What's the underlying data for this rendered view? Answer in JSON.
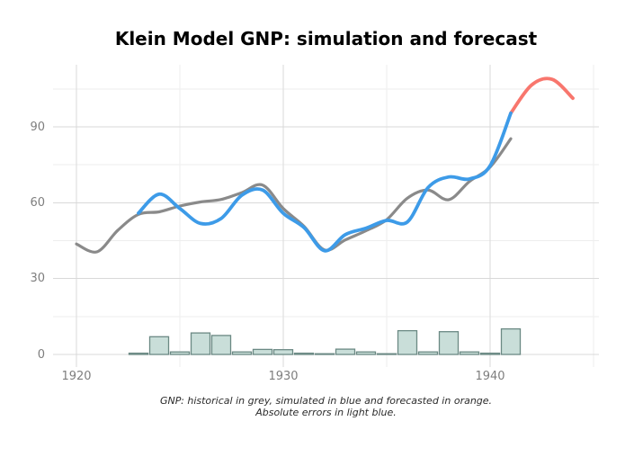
{
  "chart_data": {
    "type": "line+bar",
    "title": "Klein Model GNP: simulation and forecast",
    "caption_line1": "GNP: historical in grey, simulated in blue and forecasted in orange.",
    "caption_line2": "Absolute errors in light blue.",
    "xlabel": "",
    "ylabel": "",
    "grid": true,
    "legend": false,
    "x_axis": {
      "ticks_major": [
        1920,
        1930,
        1940
      ],
      "ticks_minor": [
        1925,
        1935,
        1945
      ],
      "range": [
        1918.9,
        1946.3
      ]
    },
    "y_axis": {
      "ticks_major": [
        0,
        30,
        60,
        90
      ],
      "ticks_minor": [
        15,
        45,
        75,
        105
      ],
      "range": [
        -5.5,
        114.5
      ]
    },
    "colors": {
      "historical": "#8a8a8a",
      "simulated": "#3d9be8",
      "forecast": "#f8766d",
      "error_fill": "#c9ded9",
      "error_border": "#6b8984",
      "grid_major": "#d9d9d9",
      "grid_minor": "#eeeeee",
      "axis_label": "#7e7e7e"
    },
    "series": [
      {
        "name": "historical GNP",
        "style": "line",
        "color_key": "historical",
        "years": [
          1920,
          1921,
          1922,
          1923,
          1924,
          1925,
          1926,
          1927,
          1928,
          1929,
          1930,
          1931,
          1932,
          1933,
          1934,
          1935,
          1936,
          1937,
          1938,
          1939,
          1940,
          1941
        ],
        "values": [
          43.7,
          40.6,
          49.1,
          55.4,
          56.4,
          58.7,
          60.3,
          61.3,
          64.0,
          67.0,
          57.7,
          50.7,
          41.3,
          45.3,
          48.9,
          53.3,
          61.8,
          65.0,
          61.2,
          68.4,
          74.1,
          85.3
        ]
      },
      {
        "name": "simulated GNP",
        "style": "line",
        "color_key": "simulated",
        "years": [
          1923,
          1924,
          1925,
          1926,
          1927,
          1928,
          1929,
          1930,
          1931,
          1932,
          1933,
          1934,
          1935,
          1936,
          1937,
          1938,
          1939,
          1940,
          1941
        ],
        "values": [
          55.9,
          63.4,
          57.7,
          51.8,
          53.8,
          63.0,
          65.0,
          55.8,
          50.2,
          41.0,
          47.4,
          49.9,
          53.0,
          52.4,
          66.0,
          70.2,
          69.4,
          74.6,
          95.4
        ]
      },
      {
        "name": "forecasted GNP",
        "style": "line",
        "color_key": "forecast",
        "years": [
          1941,
          1942,
          1943,
          1944
        ],
        "values": [
          95.4,
          106.5,
          108.8,
          101.3
        ]
      },
      {
        "name": "absolute simulation errors",
        "style": "bar",
        "fill_key": "error_fill",
        "border_key": "error_border",
        "years": [
          1923,
          1924,
          1925,
          1926,
          1927,
          1928,
          1929,
          1930,
          1931,
          1932,
          1933,
          1934,
          1935,
          1936,
          1937,
          1938,
          1939,
          1940,
          1941
        ],
        "values": [
          0.5,
          7.0,
          1.0,
          8.5,
          7.5,
          1.0,
          2.0,
          1.9,
          0.5,
          0.3,
          2.1,
          1.0,
          0.3,
          9.4,
          1.0,
          9.0,
          1.0,
          0.5,
          10.1
        ]
      }
    ]
  }
}
